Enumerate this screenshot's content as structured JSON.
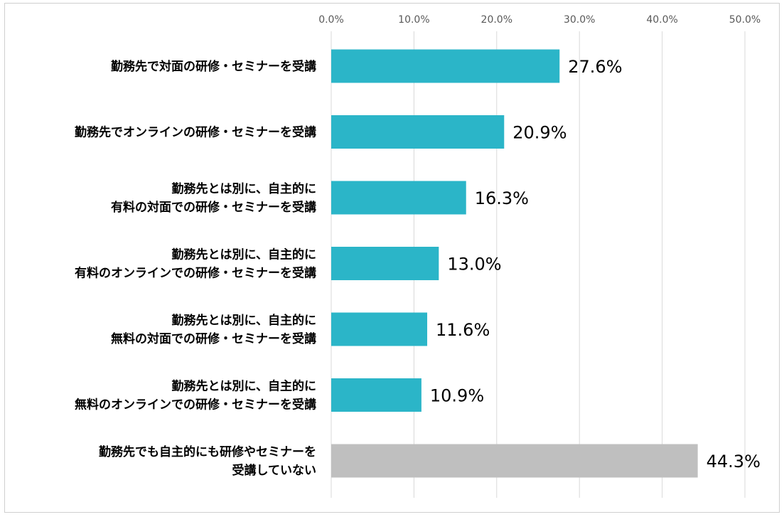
{
  "chart_data": {
    "type": "bar",
    "orientation": "horizontal",
    "categories": [
      [
        "勤務先で対面の研修・セミナーを受講"
      ],
      [
        "勤務先でオンラインの研修・セミナーを受講"
      ],
      [
        "勤務先とは別に、自主的に",
        "有料の対面での研修・セミナーを受講"
      ],
      [
        "勤務先とは別に、自主的に",
        "有料のオンラインでの研修・セミナーを受講"
      ],
      [
        "勤務先とは別に、自主的に",
        "無料の対面での研修・セミナーを受講"
      ],
      [
        "勤務先とは別に、自主的に",
        "無料のオンラインでの研修・セミナーを受講"
      ],
      [
        "勤務先でも自主的にも研修やセミナーを",
        "受講していない"
      ]
    ],
    "values": [
      27.6,
      20.9,
      16.3,
      13.0,
      11.6,
      10.9,
      44.3
    ],
    "data_labels": [
      "27.6%",
      "20.9%",
      "16.3%",
      "13.0%",
      "11.6%",
      "10.9%",
      "44.3%"
    ],
    "bar_colors": [
      "#2bb5c8",
      "#2bb5c8",
      "#2bb5c8",
      "#2bb5c8",
      "#2bb5c8",
      "#2bb5c8",
      "#bfbfbf"
    ],
    "x_ticks": [
      "0.0%",
      "10.0%",
      "20.0%",
      "30.0%",
      "40.0%",
      "50.0%"
    ],
    "x_axis_position": "top",
    "xlim": [
      0,
      50
    ],
    "grid": true,
    "grid_color": "#d9d9d9",
    "legend": false,
    "title": "",
    "xlabel": "",
    "ylabel": ""
  }
}
